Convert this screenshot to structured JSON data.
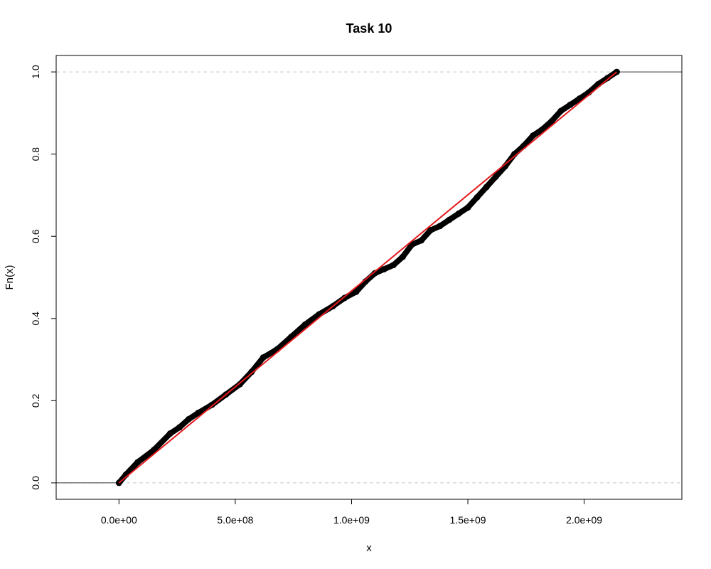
{
  "chart_data": {
    "type": "line",
    "title": "Task 10",
    "xlabel": "x",
    "ylabel": "Fn(x)",
    "xlim": [
      -270000000,
      2420000000
    ],
    "ylim": [
      -0.04,
      1.04
    ],
    "x_ticks": [
      0,
      500000000,
      1000000000,
      1500000000,
      2000000000
    ],
    "x_tick_labels": [
      "0.0e+00",
      "5.0e+08",
      "1.0e+09",
      "1.5e+09",
      "2.0e+09"
    ],
    "y_ticks": [
      0.0,
      0.2,
      0.4,
      0.6,
      0.8,
      1.0
    ],
    "y_tick_labels": [
      "0.0",
      "0.2",
      "0.4",
      "0.6",
      "0.8",
      "1.0"
    ],
    "horizontal_reference_lines": [
      0,
      1
    ],
    "grid": false,
    "colors": {
      "ecdf": "#000000",
      "reference": "#e41a1c",
      "hline": "#c8c8c8"
    },
    "series": [
      {
        "kind": "ecdf-points",
        "x": [
          0,
          30000000,
          80000000,
          150000000,
          220000000,
          260000000,
          300000000,
          340000000,
          400000000,
          460000000,
          520000000,
          570000000,
          620000000,
          680000000,
          740000000,
          800000000,
          860000000,
          920000000,
          970000000,
          1020000000,
          1060000000,
          1100000000,
          1140000000,
          1180000000,
          1220000000,
          1260000000,
          1300000000,
          1340000000,
          1380000000,
          1420000000,
          1460000000,
          1500000000,
          1540000000,
          1580000000,
          1620000000,
          1660000000,
          1700000000,
          1740000000,
          1780000000,
          1820000000,
          1860000000,
          1900000000,
          1940000000,
          1980000000,
          2020000000,
          2060000000,
          2100000000,
          2140000000
        ],
        "y": [
          0.0,
          0.02,
          0.05,
          0.08,
          0.12,
          0.135,
          0.155,
          0.17,
          0.19,
          0.215,
          0.24,
          0.27,
          0.305,
          0.325,
          0.355,
          0.385,
          0.41,
          0.43,
          0.45,
          0.465,
          0.49,
          0.51,
          0.52,
          0.53,
          0.55,
          0.58,
          0.59,
          0.615,
          0.625,
          0.64,
          0.655,
          0.67,
          0.695,
          0.72,
          0.745,
          0.77,
          0.8,
          0.82,
          0.845,
          0.86,
          0.88,
          0.905,
          0.92,
          0.935,
          0.95,
          0.97,
          0.985,
          1.0
        ]
      },
      {
        "kind": "reference-line",
        "x": [
          0,
          2140000000
        ],
        "y": [
          0,
          1
        ]
      }
    ]
  }
}
